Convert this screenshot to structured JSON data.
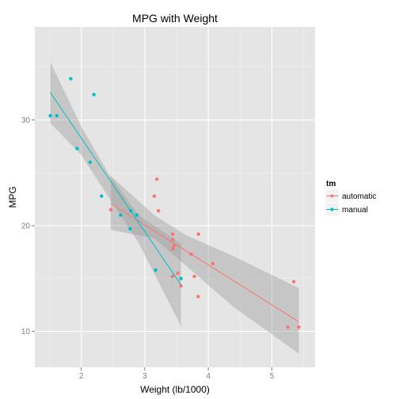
{
  "chart_data": {
    "type": "scatter",
    "title": "MPG with Weight",
    "xlabel": "Weight (lb/1000)",
    "ylabel": "MPG",
    "xlim": [
      1.27,
      5.68
    ],
    "ylim": [
      6.6,
      38.8
    ],
    "x_ticks": [
      2,
      3,
      4,
      5
    ],
    "y_ticks": [
      10,
      20,
      30
    ],
    "x_tick_labels": [
      "2",
      "3",
      "4",
      "5"
    ],
    "y_tick_labels": [
      "10",
      "20",
      "30"
    ],
    "grid": true,
    "legend": {
      "title": "tm",
      "placement": "right",
      "entries": [
        {
          "label": "automatic",
          "color": "#F8766D"
        },
        {
          "label": "manual",
          "color": "#00BFC4"
        }
      ]
    },
    "series": [
      {
        "name": "automatic",
        "color": "#F8766D",
        "points": [
          {
            "x": 3.215,
            "y": 21.4
          },
          {
            "x": 3.44,
            "y": 18.7
          },
          {
            "x": 3.46,
            "y": 18.1
          },
          {
            "x": 3.57,
            "y": 14.3
          },
          {
            "x": 3.19,
            "y": 24.4
          },
          {
            "x": 3.15,
            "y": 22.8
          },
          {
            "x": 3.44,
            "y": 19.2
          },
          {
            "x": 3.44,
            "y": 17.8
          },
          {
            "x": 4.07,
            "y": 16.4
          },
          {
            "x": 3.73,
            "y": 17.3
          },
          {
            "x": 3.78,
            "y": 15.2
          },
          {
            "x": 5.25,
            "y": 10.4
          },
          {
            "x": 5.424,
            "y": 10.4
          },
          {
            "x": 5.345,
            "y": 14.7
          },
          {
            "x": 2.465,
            "y": 21.5
          },
          {
            "x": 3.52,
            "y": 15.5
          },
          {
            "x": 3.435,
            "y": 15.2
          },
          {
            "x": 3.84,
            "y": 13.3
          },
          {
            "x": 3.845,
            "y": 19.2
          }
        ],
        "trend": {
          "x": [
            2.465,
            5.424
          ],
          "y": [
            22.1,
            10.9
          ]
        },
        "band": [
          {
            "x": 2.465,
            "lo": 19.6,
            "hi": 24.7
          },
          {
            "x": 3.15,
            "lo": 18.8,
            "hi": 21.0
          },
          {
            "x": 3.65,
            "lo": 16.2,
            "hi": 19.1
          },
          {
            "x": 4.4,
            "lo": 12.3,
            "hi": 17.1
          },
          {
            "x": 5.424,
            "lo": 7.9,
            "hi": 14.1
          }
        ]
      },
      {
        "name": "manual",
        "color": "#00BFC4",
        "points": [
          {
            "x": 2.62,
            "y": 21.0
          },
          {
            "x": 2.875,
            "y": 21.0
          },
          {
            "x": 2.32,
            "y": 22.8
          },
          {
            "x": 2.2,
            "y": 32.4
          },
          {
            "x": 1.615,
            "y": 30.4
          },
          {
            "x": 1.835,
            "y": 33.9
          },
          {
            "x": 1.935,
            "y": 27.3
          },
          {
            "x": 2.14,
            "y": 26.0
          },
          {
            "x": 1.513,
            "y": 30.4
          },
          {
            "x": 3.17,
            "y": 15.8
          },
          {
            "x": 2.77,
            "y": 19.7
          },
          {
            "x": 3.57,
            "y": 15.0
          },
          {
            "x": 2.78,
            "y": 21.4
          }
        ],
        "trend": {
          "x": [
            1.513,
            3.57
          ],
          "y": [
            32.6,
            14.4
          ]
        },
        "band": [
          {
            "x": 1.513,
            "lo": 29.7,
            "hi": 35.5
          },
          {
            "x": 2.0,
            "lo": 26.7,
            "hi": 29.4
          },
          {
            "x": 2.42,
            "lo": 22.8,
            "hi": 25.0
          },
          {
            "x": 2.9,
            "lo": 18.4,
            "hi": 21.0
          },
          {
            "x": 3.57,
            "lo": 10.5,
            "hi": 18.3
          }
        ]
      }
    ]
  }
}
